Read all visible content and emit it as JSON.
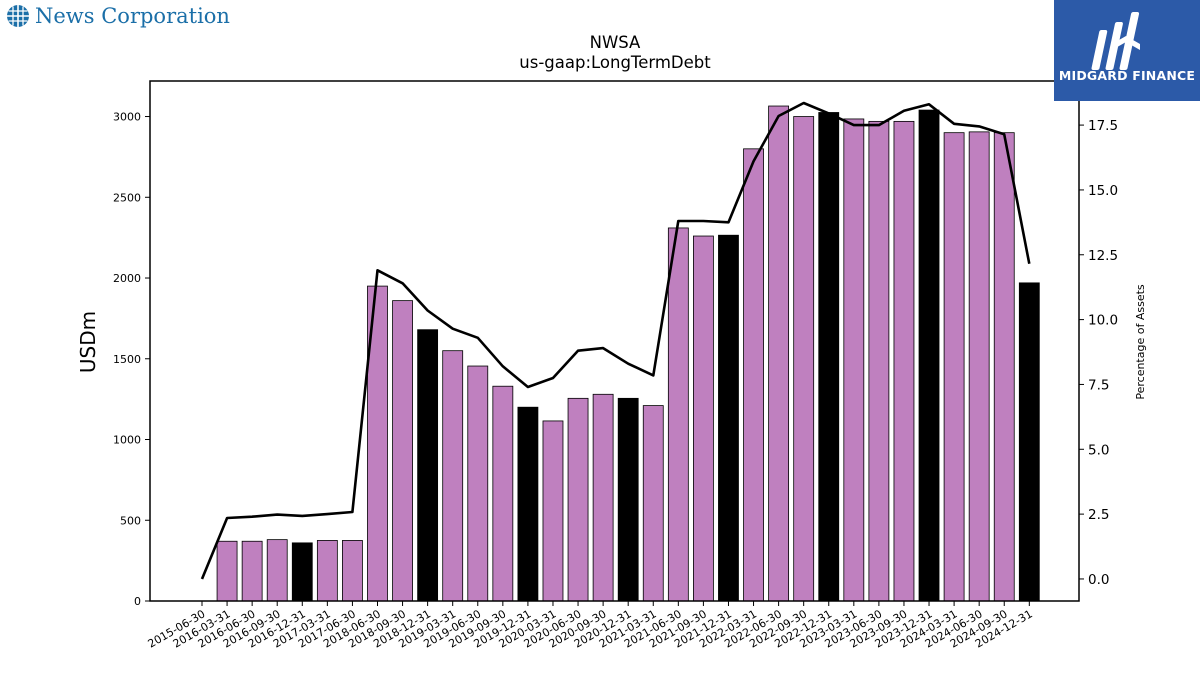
{
  "header": {
    "company_name": "News Corporation",
    "company_icon": "globe-grid-icon",
    "brand_name": "MIDGARD FINANCE",
    "brand_icon": "midgard-logo-icon"
  },
  "colors": {
    "bar_regular": "#bf80bf",
    "bar_year_end": "#000000",
    "line": "#000000",
    "company_text": "#1b6fa8",
    "brand_bg": "#2c5aa8"
  },
  "chart_data": {
    "type": "bar",
    "title": "NWSA",
    "subtitle": "us-gaap:LongTermDebt",
    "ylabel": "USDm",
    "y2label": "Percentage of Assets",
    "ylim": [
      0,
      3220
    ],
    "y2lim": [
      -0.85,
      19.2
    ],
    "yticks": [
      0,
      500,
      1000,
      1500,
      2000,
      2500,
      3000
    ],
    "y2ticks": [
      0.0,
      2.5,
      5.0,
      7.5,
      10.0,
      12.5,
      15.0,
      17.5
    ],
    "categories": [
      "2015-06-30",
      "2016-03-31",
      "2016-06-30",
      "2016-09-30",
      "2016-12-31",
      "2017-03-31",
      "2017-06-30",
      "2018-06-30",
      "2018-09-30",
      "2018-12-31",
      "2019-03-31",
      "2019-06-30",
      "2019-09-30",
      "2019-12-31",
      "2020-03-31",
      "2020-06-30",
      "2020-09-30",
      "2020-12-31",
      "2021-03-31",
      "2021-06-30",
      "2021-09-30",
      "2021-12-31",
      "2022-03-31",
      "2022-06-30",
      "2022-09-30",
      "2022-12-31",
      "2023-03-31",
      "2023-06-30",
      "2023-09-30",
      "2023-12-31",
      "2024-03-31",
      "2024-06-30",
      "2024-09-30",
      "2024-12-31"
    ],
    "series": [
      {
        "type": "bar",
        "values": [
          0,
          370,
          370,
          380,
          360,
          375,
          375,
          1950,
          1860,
          1680,
          1550,
          1455,
          1330,
          1200,
          1115,
          1255,
          1280,
          1255,
          1210,
          2310,
          2260,
          2265,
          2800,
          3065,
          3000,
          3025,
          2985,
          2970,
          2970,
          3040,
          2900,
          2905,
          2900,
          1970
        ],
        "highlighted": [
          false,
          false,
          false,
          false,
          true,
          false,
          false,
          false,
          false,
          true,
          false,
          false,
          false,
          true,
          false,
          false,
          false,
          true,
          false,
          false,
          false,
          true,
          false,
          false,
          false,
          true,
          false,
          false,
          false,
          true,
          false,
          false,
          false,
          true
        ]
      },
      {
        "type": "line",
        "axis": "right",
        "values": [
          0.0,
          2.35,
          2.4,
          2.48,
          2.43,
          2.5,
          2.58,
          11.9,
          11.4,
          10.35,
          9.65,
          9.3,
          8.2,
          7.4,
          7.75,
          8.8,
          8.9,
          8.3,
          7.85,
          13.8,
          13.8,
          13.75,
          16.1,
          17.85,
          18.35,
          17.95,
          17.5,
          17.5,
          18.05,
          18.3,
          17.55,
          17.45,
          17.15,
          12.15
        ]
      }
    ],
    "grid": false,
    "legend": "none"
  }
}
